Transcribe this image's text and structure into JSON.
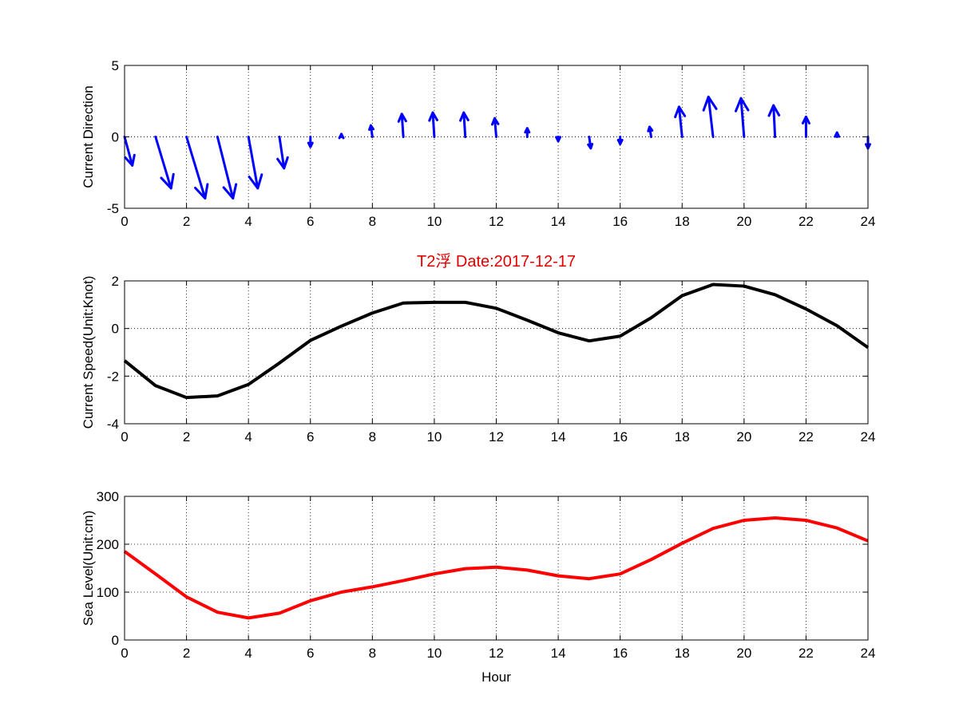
{
  "chart_data": [
    {
      "type": "quiver",
      "ylabel": "Current Direction",
      "xlim": [
        0,
        24
      ],
      "ylim": [
        -5,
        5
      ],
      "xticks": [
        0,
        2,
        4,
        6,
        8,
        10,
        12,
        14,
        16,
        18,
        20,
        22,
        24
      ],
      "yticks": [
        -5,
        0,
        5
      ],
      "grid": true,
      "color": "#0000ff",
      "series": [
        {
          "x": [
            0,
            1,
            2,
            3,
            4,
            5,
            6,
            7,
            8,
            9,
            10,
            11,
            12,
            13,
            14,
            15,
            16,
            17,
            18,
            19,
            20,
            21,
            22,
            23,
            24
          ],
          "u": [
            0.25,
            0.5,
            0.6,
            0.5,
            0.3,
            0.15,
            0,
            0,
            -0.05,
            -0.05,
            -0.05,
            -0.05,
            -0.05,
            0,
            0,
            0.05,
            0,
            -0.05,
            -0.1,
            -0.15,
            -0.1,
            -0.05,
            0,
            0,
            0
          ],
          "v": [
            -2.0,
            -3.6,
            -4.3,
            -4.3,
            -3.6,
            -2.2,
            -0.7,
            0.2,
            0.8,
            1.6,
            1.7,
            1.7,
            1.3,
            0.6,
            -0.3,
            -0.8,
            -0.5,
            0.7,
            2.1,
            2.8,
            2.7,
            2.2,
            1.4,
            0.3,
            -0.8
          ]
        }
      ]
    },
    {
      "type": "line",
      "title": "T2浮   Date:2017-12-17",
      "ylabel": "Current Speed(Unit:Knot)",
      "xlim": [
        0,
        24
      ],
      "ylim": [
        -4,
        2
      ],
      "xticks": [
        0,
        2,
        4,
        6,
        8,
        10,
        12,
        14,
        16,
        18,
        20,
        22,
        24
      ],
      "yticks": [
        -4,
        -2,
        0,
        2
      ],
      "grid": true,
      "color": "#000000",
      "series": [
        {
          "x": [
            0,
            1,
            2,
            3,
            4,
            5,
            6,
            7,
            8,
            9,
            10,
            11,
            12,
            13,
            14,
            15,
            16,
            17,
            18,
            19,
            20,
            21,
            22,
            23,
            24
          ],
          "y": [
            -1.35,
            -2.4,
            -2.9,
            -2.83,
            -2.35,
            -1.45,
            -0.5,
            0.1,
            0.65,
            1.07,
            1.1,
            1.1,
            0.85,
            0.35,
            -0.18,
            -0.52,
            -0.32,
            0.45,
            1.38,
            1.85,
            1.78,
            1.42,
            0.82,
            0.12,
            -0.8
          ]
        }
      ]
    },
    {
      "type": "line",
      "xlabel": "Hour",
      "ylabel": "Sea Level(Unit:cm)",
      "xlim": [
        0,
        24
      ],
      "ylim": [
        0,
        300
      ],
      "xticks": [
        0,
        2,
        4,
        6,
        8,
        10,
        12,
        14,
        16,
        18,
        20,
        22,
        24
      ],
      "yticks": [
        0,
        100,
        200,
        300
      ],
      "grid": true,
      "color": "#ff0000",
      "series": [
        {
          "x": [
            0,
            1,
            2,
            3,
            4,
            5,
            6,
            7,
            8,
            9,
            10,
            11,
            12,
            13,
            14,
            15,
            16,
            17,
            18,
            19,
            20,
            21,
            22,
            23,
            24
          ],
          "y": [
            185,
            138,
            90,
            58,
            46,
            56,
            82,
            100,
            111,
            124,
            138,
            149,
            152,
            146,
            134,
            128,
            138,
            168,
            202,
            233,
            250,
            255,
            250,
            234,
            207
          ]
        }
      ]
    }
  ]
}
